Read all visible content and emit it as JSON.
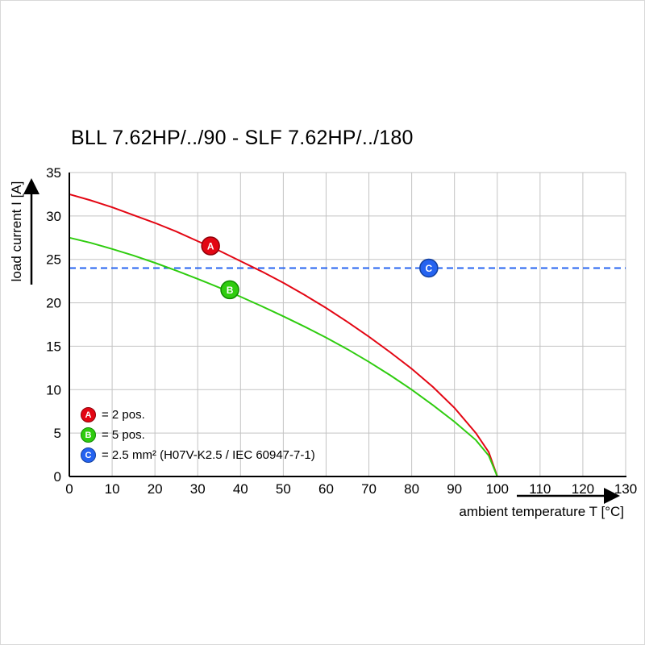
{
  "chart_data": {
    "type": "line",
    "title": "BLL 7.62HP/../90 - SLF 7.62HP/../180",
    "xlabel": "ambient temperature T [°C]",
    "ylabel": "load current I [A]",
    "xlim": [
      0,
      130
    ],
    "ylim": [
      0,
      35
    ],
    "x_ticks": [
      0,
      10,
      20,
      30,
      40,
      50,
      60,
      70,
      80,
      90,
      100,
      110,
      120,
      130
    ],
    "y_ticks": [
      0,
      5,
      10,
      15,
      20,
      25,
      30,
      35
    ],
    "grid": true,
    "grid_color": "#c3c3c3",
    "legend_position": "bottom-left-inside",
    "series": [
      {
        "name": "A",
        "legend_label": "= 2 pos.",
        "color": "#e30613",
        "edge_color": "#8e0009",
        "style": "solid",
        "points": [
          [
            0,
            32.5
          ],
          [
            5,
            31.8
          ],
          [
            10,
            31.0
          ],
          [
            15,
            30.1
          ],
          [
            20,
            29.2
          ],
          [
            25,
            28.2
          ],
          [
            30,
            27.1
          ],
          [
            35,
            26.0
          ],
          [
            40,
            24.8
          ],
          [
            45,
            23.6
          ],
          [
            50,
            22.3
          ],
          [
            55,
            20.9
          ],
          [
            60,
            19.4
          ],
          [
            65,
            17.8
          ],
          [
            70,
            16.1
          ],
          [
            75,
            14.3
          ],
          [
            80,
            12.4
          ],
          [
            85,
            10.3
          ],
          [
            90,
            7.9
          ],
          [
            95,
            5.0
          ],
          [
            98,
            2.8
          ],
          [
            100,
            0
          ]
        ]
      },
      {
        "name": "B",
        "legend_label": "= 5 pos.",
        "color": "#2fcc0f",
        "edge_color": "#0f8a00",
        "style": "solid",
        "points": [
          [
            0,
            27.5
          ],
          [
            5,
            26.9
          ],
          [
            10,
            26.2
          ],
          [
            15,
            25.45
          ],
          [
            20,
            24.6
          ],
          [
            25,
            23.7
          ],
          [
            30,
            22.75
          ],
          [
            35,
            21.75
          ],
          [
            40,
            20.7
          ],
          [
            45,
            19.6
          ],
          [
            50,
            18.45
          ],
          [
            55,
            17.25
          ],
          [
            60,
            16.0
          ],
          [
            65,
            14.65
          ],
          [
            70,
            13.2
          ],
          [
            75,
            11.65
          ],
          [
            80,
            10.0
          ],
          [
            85,
            8.2
          ],
          [
            90,
            6.3
          ],
          [
            95,
            4.2
          ],
          [
            98,
            2.4
          ],
          [
            100,
            0
          ]
        ]
      },
      {
        "name": "C",
        "legend_label": "= 2.5 mm² (H07V-K2.5 / IEC 60947-7-1)",
        "color": "#2563f0",
        "edge_color": "#123f9e",
        "style": "dashed",
        "dash": "8 5",
        "points": [
          [
            0,
            24
          ],
          [
            130,
            24
          ]
        ]
      }
    ],
    "markers": [
      {
        "label": "A",
        "x": 33,
        "y": 26.55,
        "color": "#e30613",
        "edge": "#8e0009"
      },
      {
        "label": "B",
        "x": 37.5,
        "y": 21.5,
        "color": "#2fcc0f",
        "edge": "#0f8a00"
      },
      {
        "label": "C",
        "x": 84,
        "y": 24,
        "color": "#2563f0",
        "edge": "#123f9e"
      }
    ]
  }
}
